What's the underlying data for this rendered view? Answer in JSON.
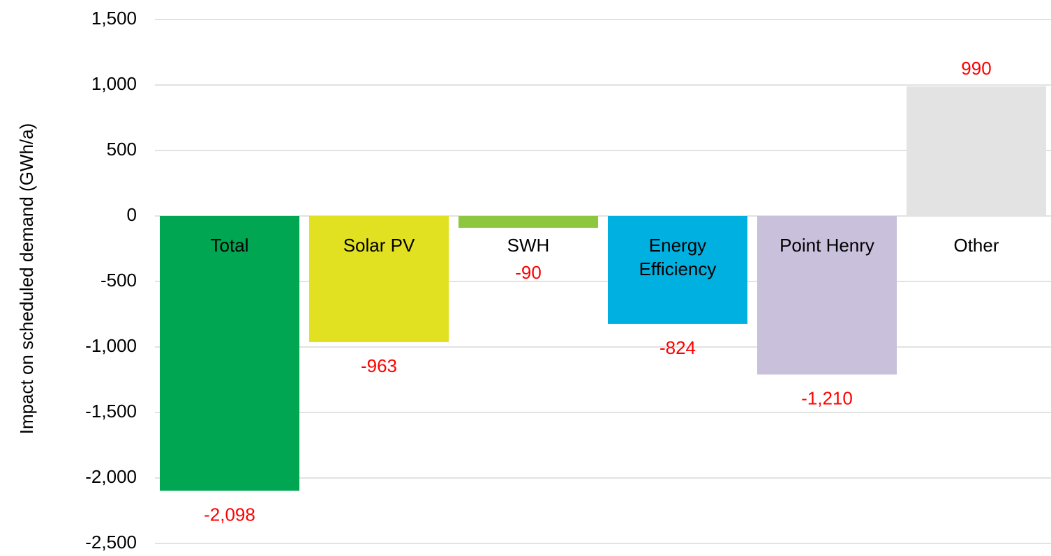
{
  "chart_data": {
    "type": "bar",
    "y_label": "Impact on scheduled demand (GWh/a)",
    "categories": [
      "Total",
      "Solar PV",
      "SWH",
      "Energy Efficiency",
      "Point Henry",
      "Other"
    ],
    "values": [
      -2098,
      -963,
      -90,
      -824,
      -1210,
      990
    ],
    "value_labels": [
      "-2,098",
      "-963",
      "-90",
      "-824",
      "-1,210",
      "990"
    ],
    "colors": [
      "#00a651",
      "#e1e121",
      "#8dc63f",
      "#00b0e0",
      "#c9c0dc",
      "#e3e3e3"
    ],
    "ylim": [
      -2500,
      1500
    ],
    "yticks": [
      {
        "value": -2500,
        "label": "-2,500"
      },
      {
        "value": -2000,
        "label": "-2,000"
      },
      {
        "value": -1500,
        "label": "-1,500"
      },
      {
        "value": -1000,
        "label": "-1,000"
      },
      -500,
      0,
      500,
      {
        "value": 1000,
        "label": "1,000"
      },
      {
        "value": 1500,
        "label": "1,500"
      }
    ],
    "grid": true
  }
}
